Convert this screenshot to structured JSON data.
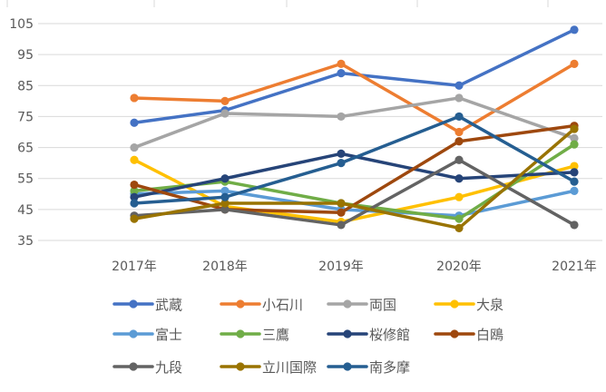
{
  "chart_data": {
    "type": "line",
    "categories": [
      "2017年",
      "2018年",
      "2019年",
      "2020年",
      "2021年"
    ],
    "ylim": [
      35,
      105
    ],
    "yticks": [
      35,
      45,
      55,
      65,
      75,
      85,
      95,
      105
    ],
    "grid": true,
    "legend_position": "bottom",
    "series": [
      {
        "name": "武蔵",
        "color": "#4472C4",
        "values": [
          73,
          77,
          89,
          85,
          103
        ]
      },
      {
        "name": "小石川",
        "color": "#ED7D31",
        "values": [
          81,
          80,
          92,
          70,
          92
        ]
      },
      {
        "name": "両国",
        "color": "#A5A5A5",
        "values": [
          65,
          76,
          75,
          81,
          68
        ]
      },
      {
        "name": "大泉",
        "color": "#FFC000",
        "values": [
          61,
          46,
          41,
          49,
          59
        ]
      },
      {
        "name": "富士",
        "color": "#5B9BD5",
        "values": [
          50,
          51,
          45,
          43,
          51
        ]
      },
      {
        "name": "三鷹",
        "color": "#70AD47",
        "values": [
          51,
          54,
          47,
          42,
          66
        ]
      },
      {
        "name": "桜修館",
        "color": "#264478",
        "values": [
          49,
          55,
          63,
          55,
          57
        ]
      },
      {
        "name": "白鴎",
        "color": "#9E480E",
        "values": [
          53,
          45,
          44,
          67,
          72
        ]
      },
      {
        "name": "九段",
        "color": "#636363",
        "values": [
          43,
          45,
          40,
          61,
          40
        ]
      },
      {
        "name": "立川国際",
        "color": "#997300",
        "values": [
          42,
          47,
          47,
          39,
          71
        ]
      },
      {
        "name": "南多摩",
        "color": "#255E91",
        "values": [
          47,
          49,
          60,
          75,
          54
        ]
      }
    ]
  }
}
